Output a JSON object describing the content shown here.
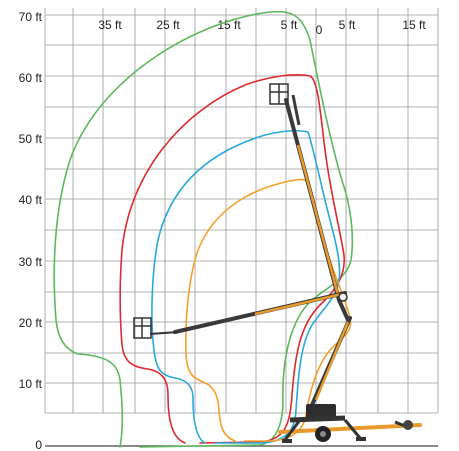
{
  "chart_data": {
    "type": "line",
    "y_ticks": [
      "0",
      "10 ft",
      "20 ft",
      "30 ft",
      "40 ft",
      "50 ft",
      "60 ft",
      "70 ft"
    ],
    "x_ticks": [
      "35 ft",
      "25 ft",
      "15 ft",
      "5 ft",
      "0",
      "5 ft",
      "15 ft"
    ],
    "ylim": [
      0,
      70
    ],
    "xlim": [
      -40,
      20
    ],
    "grid": true,
    "envelopes": [
      {
        "color": "#5cb85c"
      },
      {
        "color": "#dd2a30"
      },
      {
        "color": "#29a8df"
      },
      {
        "color": "#f5a02a"
      }
    ]
  },
  "colors": {
    "green_envelope": "#5cb85c",
    "red_envelope": "#dd2a30",
    "blue_envelope": "#29a8df",
    "orange_envelope": "#f5a02a",
    "boom_orange": "#e89a2c",
    "boom_dark": "#3a3a3a"
  }
}
